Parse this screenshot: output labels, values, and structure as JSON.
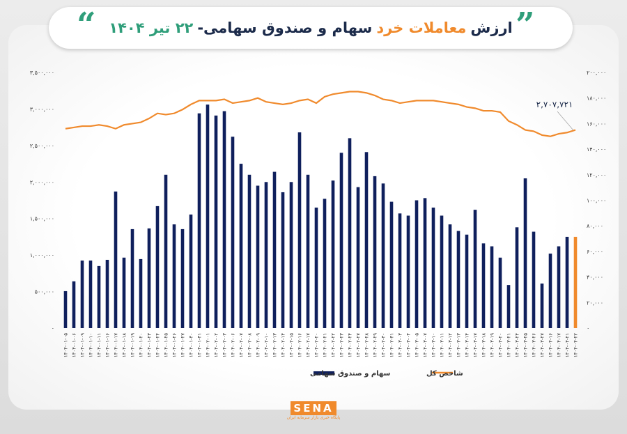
{
  "chart_data": {
    "type": "bar-line",
    "title_parts": [
      "ارزش",
      "معاملات خرد",
      "سهام و صندوق سهامی-",
      "۲۲ تیر ۱۴۰۴"
    ],
    "title_colors": [
      "#1b2a4a",
      "#f08a2c",
      "#1b2a4a",
      "#2f9e7a"
    ],
    "categories": [
      "۱۴۰۴-۰۱-۰۵",
      "۱۴۰۴-۰۱-۰۶",
      "۱۴۰۴-۰۱-۰۹",
      "۱۴۰۴-۰۱-۱۰",
      "۱۴۰۴-۰۱-۱۱",
      "۱۴۰۴-۰۱-۱۶",
      "۱۴۰۴-۰۱-۱۷",
      "۱۴۰۴-۰۱-۱۸",
      "۱۴۰۴-۰۱-۱۹",
      "۱۴۰۴-۰۱-۲۰",
      "۱۴۰۴-۰۱-۲۳",
      "۱۴۰۴-۰۱-۲۴",
      "۱۴۰۴-۰۱-۲۵",
      "۱۴۰۴-۰۱-۲۶",
      "۱۴۰۴-۰۱-۲۷",
      "۱۴۰۴-۰۱-۳۰",
      "۱۴۰۴-۰۱-۳۱",
      "۱۴۰۴-۰۲-۰۱",
      "۱۴۰۴-۰۲-۰۲",
      "۱۴۰۴-۰۲-۰۳",
      "۱۴۰۴-۰۲-۰۶",
      "۱۴۰۴-۰۲-۰۷",
      "۱۴۰۴-۰۲-۰۸",
      "۱۴۰۴-۰۲-۰۹",
      "۱۴۰۴-۰۲-۱۰",
      "۱۴۰۴-۰۲-۱۳",
      "۱۴۰۴-۰۲-۱۴",
      "۱۴۰۴-۰۲-۱۵",
      "۱۴۰۴-۰۲-۱۶",
      "۱۴۰۴-۰۲-۱۷",
      "۱۴۰۴-۰۲-۲۰",
      "۱۴۰۴-۰۲-۲۱",
      "۱۴۰۴-۰۲-۲۲",
      "۱۴۰۴-۰۲-۲۳",
      "۱۴۰۴-۰۲-۲۴",
      "۱۴۰۴-۰۲-۲۷",
      "۱۴۰۴-۰۲-۲۸",
      "۱۴۰۴-۰۲-۲۹",
      "۱۴۰۴-۰۲-۳۰",
      "۱۴۰۴-۰۲-۳۱",
      "۱۴۰۴-۰۳-۰۳",
      "۱۴۰۴-۰۳-۰۴",
      "۱۴۰۴-۰۳-۰۵",
      "۱۴۰۴-۰۳-۰۷",
      "۱۴۰۴-۰۳-۱۰",
      "۱۴۰۴-۰۳-۱۱",
      "۱۴۰۴-۰۳-۱۲",
      "۱۴۰۴-۰۳-۱۳",
      "۱۴۰۴-۰۳-۱۴",
      "۱۴۰۴-۰۳-۱۷",
      "۱۴۰۴-۰۳-۱۸",
      "۱۴۰۴-۰۳-۱۹",
      "۱۴۰۴-۰۳-۲۰",
      "۱۴۰۴-۰۳-۲۱",
      "۱۴۰۴-۰۳-۲۴",
      "۱۴۰۴-۰۳-۲۵",
      "۱۴۰۴-۰۳-۲۶",
      "۱۴۰۴-۰۳-۲۷",
      "۱۴۰۴-۰۴-۱۶",
      "۱۴۰۴-۰۴-۱۷",
      "۱۴۰۴-۰۴-۲۱",
      "۱۴۰۴-۰۴-۲۲"
    ],
    "series": [
      {
        "name": "سهام و صندوق سهامی",
        "color": "#0f1f5c",
        "last_color": "#f08a2c",
        "values": [
          506000,
          640000,
          925000,
          925000,
          850000,
          935000,
          1870000,
          965000,
          1355000,
          945000,
          1365000,
          1670000,
          2100000,
          1420000,
          1355000,
          1555000,
          2940000,
          3060000,
          2910000,
          2970000,
          2620000,
          2250000,
          2100000,
          1950000,
          2000000,
          2140000,
          1860000,
          2000000,
          2680000,
          2100000,
          1650000,
          1770000,
          2020000,
          2400000,
          2600000,
          1930000,
          2410000,
          2080000,
          1980000,
          1730000,
          1570000,
          1540000,
          1750000,
          1780000,
          1650000,
          1540000,
          1420000,
          1330000,
          1280000,
          1620000,
          1160000,
          1120000,
          965000,
          590000,
          1380000,
          2050000,
          1320000,
          610000,
          1020000,
          1120000,
          1250000,
          1250000
        ]
      },
      {
        "name": "شاخص کل",
        "color": "#f08a2c",
        "axis": "y2",
        "values": [
          156000,
          157000,
          158000,
          158000,
          159000,
          158000,
          156000,
          159000,
          160000,
          161000,
          164000,
          168000,
          167000,
          168000,
          171000,
          175000,
          178000,
          178000,
          178000,
          179000,
          176000,
          177000,
          178000,
          180000,
          177000,
          176000,
          175000,
          176000,
          178000,
          179000,
          176000,
          181000,
          183000,
          184000,
          185000,
          185000,
          184000,
          182000,
          179000,
          178000,
          176000,
          177000,
          178000,
          178000,
          178000,
          177000,
          176000,
          175000,
          173000,
          172000,
          170000,
          170000,
          169000,
          162000,
          159000,
          155000,
          154000,
          151000,
          150000,
          152000,
          153000,
          155000
        ]
      }
    ],
    "annotation": "۲,۷۰۷,۷۲۱",
    "ylim": [
      0,
      3500000
    ],
    "yticks": [
      {
        "value": 0,
        "label": "۰"
      },
      {
        "value": 500000,
        "label": "۵۰۰,۰۰۰"
      },
      {
        "value": 1000000,
        "label": "۱,۰۰۰,۰۰۰"
      },
      {
        "value": 1500000,
        "label": "۱,۵۰۰,۰۰۰"
      },
      {
        "value": 2000000,
        "label": "۲,۰۰۰,۰۰۰"
      },
      {
        "value": 2500000,
        "label": "۲,۵۰۰,۰۰۰"
      },
      {
        "value": 3000000,
        "label": "۳,۰۰۰,۰۰۰"
      },
      {
        "value": 3500000,
        "label": "۳,۵۰۰,۰۰۰"
      }
    ],
    "y2lim": [
      0,
      200000
    ],
    "y2ticks": [
      {
        "value": 0,
        "label": "۰"
      },
      {
        "value": 20000,
        "label": "۲۰,۰۰۰"
      },
      {
        "value": 40000,
        "label": "۴۰,۰۰۰"
      },
      {
        "value": 60000,
        "label": "۶۰,۰۰۰"
      },
      {
        "value": 80000,
        "label": "۸۰,۰۰۰"
      },
      {
        "value": 100000,
        "label": "۱۰۰,۰۰۰"
      },
      {
        "value": 120000,
        "label": "۱۲۰,۰۰۰"
      },
      {
        "value": 140000,
        "label": "۱۴۰,۰۰۰"
      },
      {
        "value": 160000,
        "label": "۱۶۰,۰۰۰"
      },
      {
        "value": 180000,
        "label": "۱۸۰,۰۰۰"
      },
      {
        "value": 200000,
        "label": "۲۰۰,۰۰۰"
      }
    ],
    "grid": false
  },
  "logo": {
    "name": "SENA",
    "tagline": "پایگاه خبری بازار سرمایه ایران"
  }
}
